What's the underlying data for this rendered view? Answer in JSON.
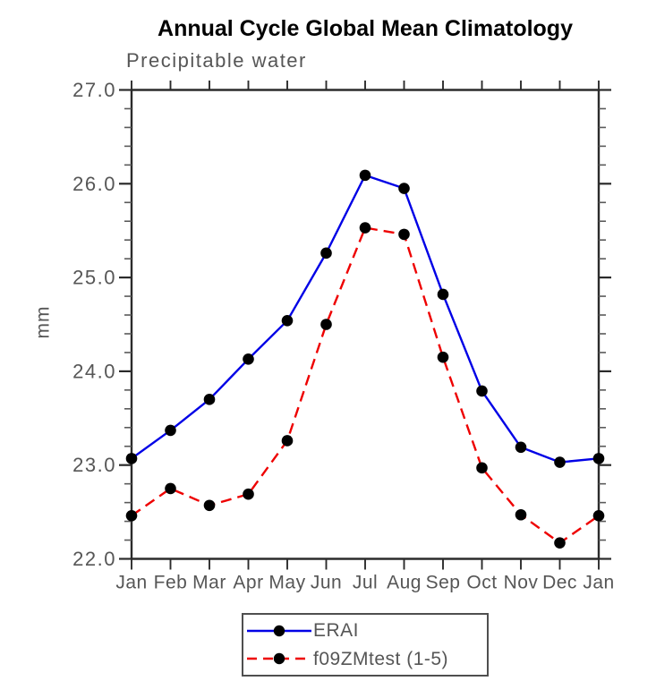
{
  "title": "Annual Cycle Global Mean Climatology",
  "chart_data": {
    "type": "line",
    "title": "Annual Cycle Global Mean Climatology",
    "subtitle": "Precipitable water",
    "xlabel": "",
    "ylabel": "mm",
    "categories": [
      "Jan",
      "Feb",
      "Mar",
      "Apr",
      "May",
      "Jun",
      "Jul",
      "Aug",
      "Sep",
      "Oct",
      "Nov",
      "Dec",
      "Jan"
    ],
    "ylim": [
      22.0,
      27.0
    ],
    "ytick_major": [
      22.0,
      23.0,
      24.0,
      25.0,
      26.0,
      27.0
    ],
    "ytick_minor_step": 0.2,
    "ytick_label_format": "one-decimal",
    "grid": false,
    "legend_position": "bottom-center-boxed",
    "series": [
      {
        "name": "ERAI",
        "line_style": "solid",
        "color": "#0000e6",
        "marker": "circle",
        "marker_color": "#000000",
        "values": [
          23.07,
          23.37,
          23.7,
          24.13,
          24.54,
          25.26,
          26.09,
          25.95,
          24.82,
          23.79,
          23.19,
          23.03,
          23.07
        ]
      },
      {
        "name": "f09ZMtest (1-5)",
        "line_style": "dashed",
        "color": "#ee0000",
        "marker": "circle",
        "marker_color": "#000000",
        "values": [
          22.46,
          22.75,
          22.57,
          22.69,
          23.26,
          24.5,
          25.53,
          25.46,
          24.15,
          22.97,
          22.47,
          22.17,
          22.46
        ]
      }
    ],
    "colors": {
      "axis": "#2b2b2b",
      "minor_tick": "#5a5a5a",
      "label_text": "#565656",
      "title_text": "#000000"
    }
  }
}
